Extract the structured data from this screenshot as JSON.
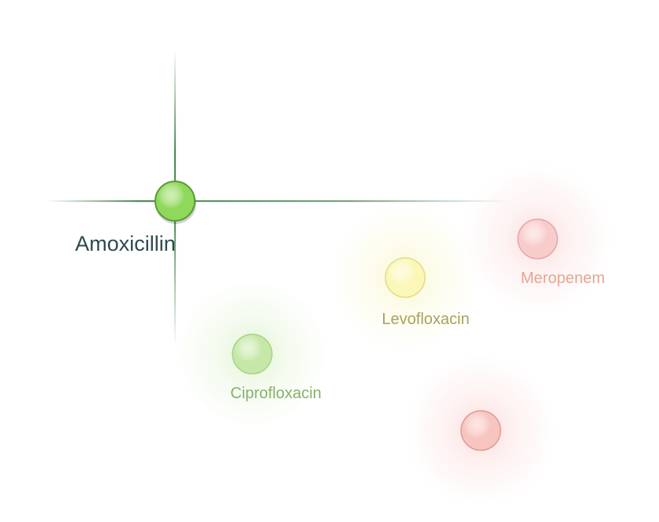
{
  "colors": {
    "grid": "#e6e6e6",
    "highlight_line": "#4f8a55",
    "label_dark": "#2f4a4f"
  },
  "nodes": [
    {
      "id": "amoxicillin",
      "label": "Amoxicillin",
      "fill": "#8fd85a",
      "stroke": "#5a9a3a",
      "glow": "#8fd85a",
      "text_color": "#2f4a4f",
      "highlighted": true
    },
    {
      "id": "levofloxacin",
      "label": "Levofloxacin",
      "fill": "#fbf7b8",
      "stroke": "#e2dc86",
      "glow": "#f5f0a0",
      "text_color": "#a9a35c",
      "highlighted": false
    },
    {
      "id": "meropenem",
      "label": "Meropenem",
      "fill": "#f9cccc",
      "stroke": "#e6a6a6",
      "glow": "#f7b8b8",
      "text_color": "#e3a794",
      "highlighted": false
    },
    {
      "id": "ciprofloxacin",
      "label": "Ciprofloxacin",
      "fill": "#c5e8a8",
      "stroke": "#a6d488",
      "glow": "#bfe79f",
      "text_color": "#86b06d",
      "highlighted": false
    },
    {
      "id": "unlabeled-node",
      "label": "",
      "fill": "#f8c4c0",
      "stroke": "#e09a94",
      "glow": "#f7b6b0",
      "text_color": "#e09a94",
      "highlighted": false
    }
  ]
}
